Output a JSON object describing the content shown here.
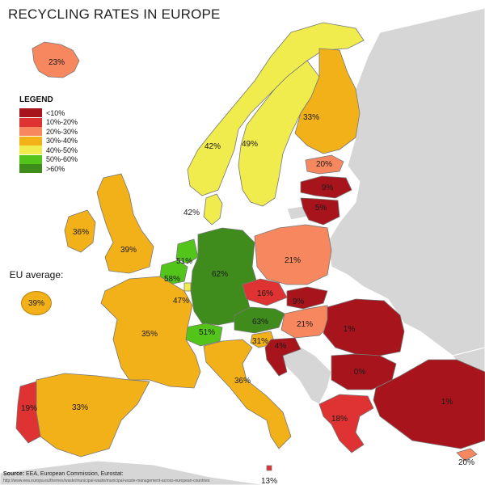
{
  "title": "RECYCLING RATES IN EUROPE",
  "legend": {
    "title": "LEGEND",
    "items": [
      {
        "label": "<10%",
        "color": "#a8141c"
      },
      {
        "label": "10%-20%",
        "color": "#df3232"
      },
      {
        "label": "20%-30%",
        "color": "#f7875f"
      },
      {
        "label": "30%-40%",
        "color": "#f2b118"
      },
      {
        "label": "40%-50%",
        "color": "#f0ec4e"
      },
      {
        "label": "50%-60%",
        "color": "#52c41a"
      },
      {
        "label": ">60%",
        "color": "#3f8c1c"
      }
    ]
  },
  "eu_average": {
    "label": "EU average:",
    "value": "39%"
  },
  "colors": {
    "sea": "#ffffff",
    "no_data": "#d6d6d6",
    "border": "#777777"
  },
  "countries": [
    {
      "id": "iceland",
      "label": "23%",
      "color": "#f7875f"
    },
    {
      "id": "norway",
      "label": "42%",
      "color": "#f0ec4e"
    },
    {
      "id": "sweden",
      "label": "49%",
      "color": "#f0ec4e"
    },
    {
      "id": "finland",
      "label": "33%",
      "color": "#f2b118"
    },
    {
      "id": "estonia",
      "label": "20%",
      "color": "#f7875f"
    },
    {
      "id": "latvia",
      "label": "9%",
      "color": "#a8141c"
    },
    {
      "id": "lithuania",
      "label": "5%",
      "color": "#a8141c"
    },
    {
      "id": "denmark",
      "label": "42%",
      "color": "#f0ec4e"
    },
    {
      "id": "ireland",
      "label": "36%",
      "color": "#f2b118"
    },
    {
      "id": "united-kingdom",
      "label": "39%",
      "color": "#f2b118"
    },
    {
      "id": "netherlands",
      "label": "51%",
      "color": "#52c41a"
    },
    {
      "id": "belgium",
      "label": "58%",
      "color": "#52c41a"
    },
    {
      "id": "luxembourg",
      "label": "47%",
      "color": "#f0ec4e"
    },
    {
      "id": "germany",
      "label": "62%",
      "color": "#3f8c1c"
    },
    {
      "id": "poland",
      "label": "21%",
      "color": "#f7875f"
    },
    {
      "id": "czechia",
      "label": "16%",
      "color": "#df3232"
    },
    {
      "id": "slovakia",
      "label": "9%",
      "color": "#a8141c"
    },
    {
      "id": "austria",
      "label": "63%",
      "color": "#3f8c1c"
    },
    {
      "id": "hungary",
      "label": "21%",
      "color": "#f7875f"
    },
    {
      "id": "slovenia",
      "label": "31%",
      "color": "#f2b118"
    },
    {
      "id": "croatia",
      "label": "4%",
      "color": "#a8141c"
    },
    {
      "id": "switzerland",
      "label": "51%",
      "color": "#52c41a"
    },
    {
      "id": "france",
      "label": "35%",
      "color": "#f2b118"
    },
    {
      "id": "italy",
      "label": "36%",
      "color": "#f2b118"
    },
    {
      "id": "spain",
      "label": "33%",
      "color": "#f2b118"
    },
    {
      "id": "portugal",
      "label": "19%",
      "color": "#df3232"
    },
    {
      "id": "romania",
      "label": "1%",
      "color": "#a8141c"
    },
    {
      "id": "bulgaria",
      "label": "0%",
      "color": "#a8141c"
    },
    {
      "id": "greece",
      "label": "18%",
      "color": "#df3232"
    },
    {
      "id": "turkey",
      "label": "1%",
      "color": "#a8141c"
    },
    {
      "id": "cyprus",
      "label": "20%",
      "color": "#f7875f"
    },
    {
      "id": "malta",
      "label": "13%",
      "color": "#df3232"
    }
  ],
  "source": {
    "prefix": "Source:",
    "text": " EEA, European Commission, Eurostat:",
    "url": "http://www.eea.europa.eu/themes/waste/municipal-waste/municipal-waste-management-across-european-countries"
  }
}
